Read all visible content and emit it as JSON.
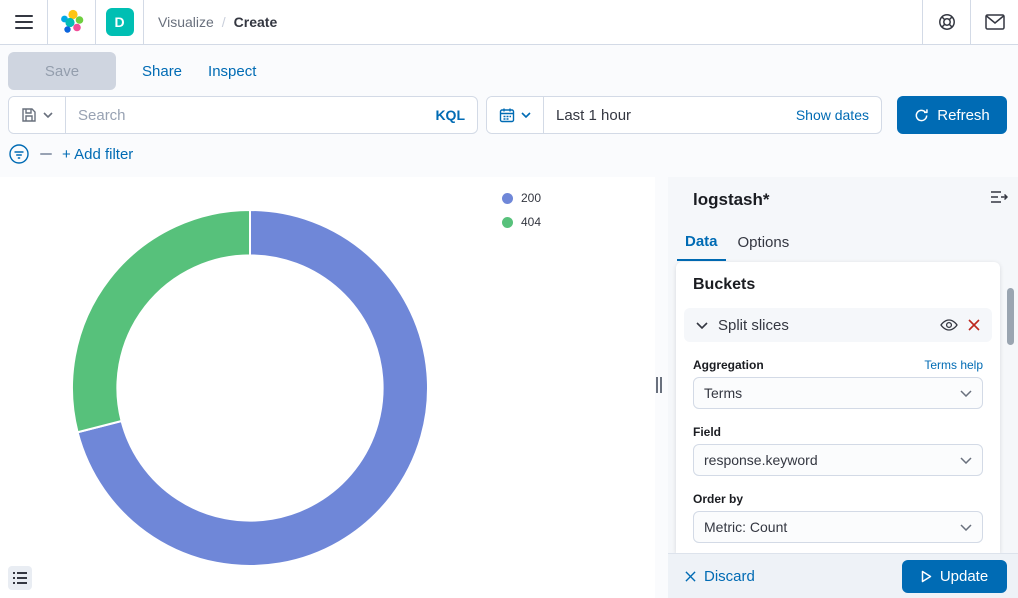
{
  "header": {
    "breadcrumb_section": "Visualize",
    "breadcrumb_sep": "/",
    "breadcrumb_current": "Create",
    "space_badge": "D"
  },
  "toolbar": {
    "save_label": "Save",
    "share_label": "Share",
    "inspect_label": "Inspect"
  },
  "query_bar": {
    "search_placeholder": "Search",
    "search_value": "",
    "kql_label": "KQL",
    "time_range": "Last 1 hour",
    "show_dates_label": "Show dates",
    "refresh_label": "Refresh"
  },
  "filter_bar": {
    "add_filter_label": "+ Add filter"
  },
  "chart_data": {
    "type": "pie",
    "subtype": "donut",
    "title": "",
    "categories": [
      "200",
      "404"
    ],
    "values_percent": [
      71,
      29
    ],
    "colors": [
      "#6F87D8",
      "#57C17B"
    ],
    "inner_radius_ratio": 0.745,
    "start_angle_deg": 0,
    "direction": "clockwise",
    "legend_position": "top-right",
    "legend_labels": [
      "200",
      "404"
    ]
  },
  "side_panel": {
    "index_pattern": "logstash*",
    "tabs": {
      "data": "Data",
      "options": "Options"
    },
    "buckets": {
      "title": "Buckets",
      "bucket_name": "Split slices",
      "aggregation_label": "Aggregation",
      "aggregation_help": "Terms help",
      "aggregation_value": "Terms",
      "field_label": "Field",
      "field_value": "response.keyword",
      "order_by_label": "Order by",
      "order_by_value": "Metric: Count"
    },
    "actions": {
      "discard_label": "Discard",
      "update_label": "Update"
    }
  },
  "colors": {
    "primary": "#006BB4",
    "danger": "#BD271E",
    "space_badge": "#00BFB3",
    "panel_bg": "#F5F7FA"
  }
}
